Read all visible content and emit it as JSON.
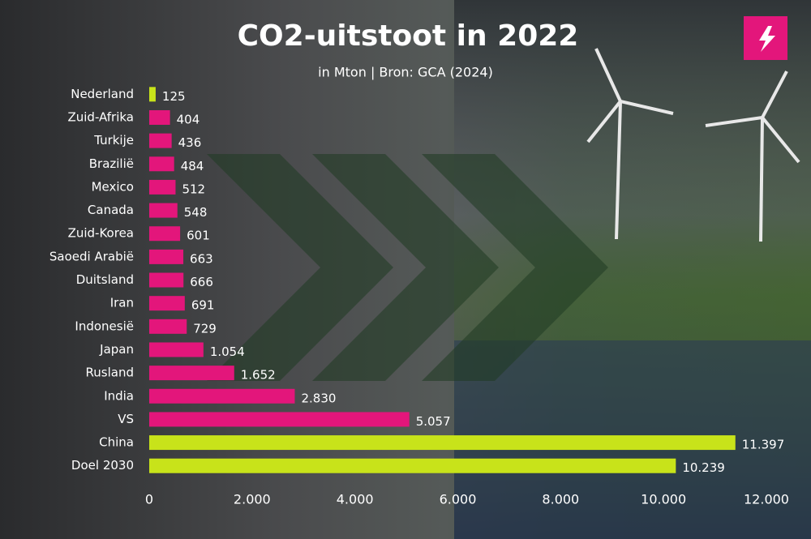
{
  "chart_data": {
    "type": "barh",
    "title": "CO2-uitstoot in 2022",
    "subtitle": "in Mton | Bron: GCA (2024)",
    "categories": [
      "Nederland",
      "Zuid-Afrika",
      "Turkije",
      "Brazilië",
      "Mexico",
      "Canada",
      "Zuid-Korea",
      "Saoedi Arabië",
      "Duitsland",
      "Iran",
      "Indonesië",
      "Japan",
      "Rusland",
      "India",
      "VS",
      "China",
      "Doel 2030"
    ],
    "values": [
      125,
      404,
      436,
      484,
      512,
      548,
      601,
      663,
      666,
      691,
      729,
      1054,
      1652,
      2830,
      5057,
      11397,
      10239
    ],
    "value_labels": [
      "125",
      "404",
      "436",
      "484",
      "512",
      "548",
      "601",
      "663",
      "666",
      "691",
      "729",
      "1.054",
      "1.652",
      "2.830",
      "5.057",
      "11.397",
      "10.239"
    ],
    "colors": [
      "#c8e31a",
      "#e3167b",
      "#e3167b",
      "#e3167b",
      "#e3167b",
      "#e3167b",
      "#e3167b",
      "#e3167b",
      "#e3167b",
      "#e3167b",
      "#e3167b",
      "#e3167b",
      "#e3167b",
      "#e3167b",
      "#e3167b",
      "#c8e31a",
      "#c8e31a"
    ],
    "xlim": [
      0,
      12000
    ],
    "xticks": [
      0,
      {
        "value": 2000,
        "label": "2.000"
      },
      {
        "value": 4000,
        "label": "4.000"
      },
      {
        "value": 6000,
        "label": "6.000"
      },
      {
        "value": 8000,
        "label": "8.000"
      },
      {
        "value": 10000,
        "label": "10.000"
      },
      {
        "value": 12000,
        "label": "12.000"
      }
    ]
  }
}
